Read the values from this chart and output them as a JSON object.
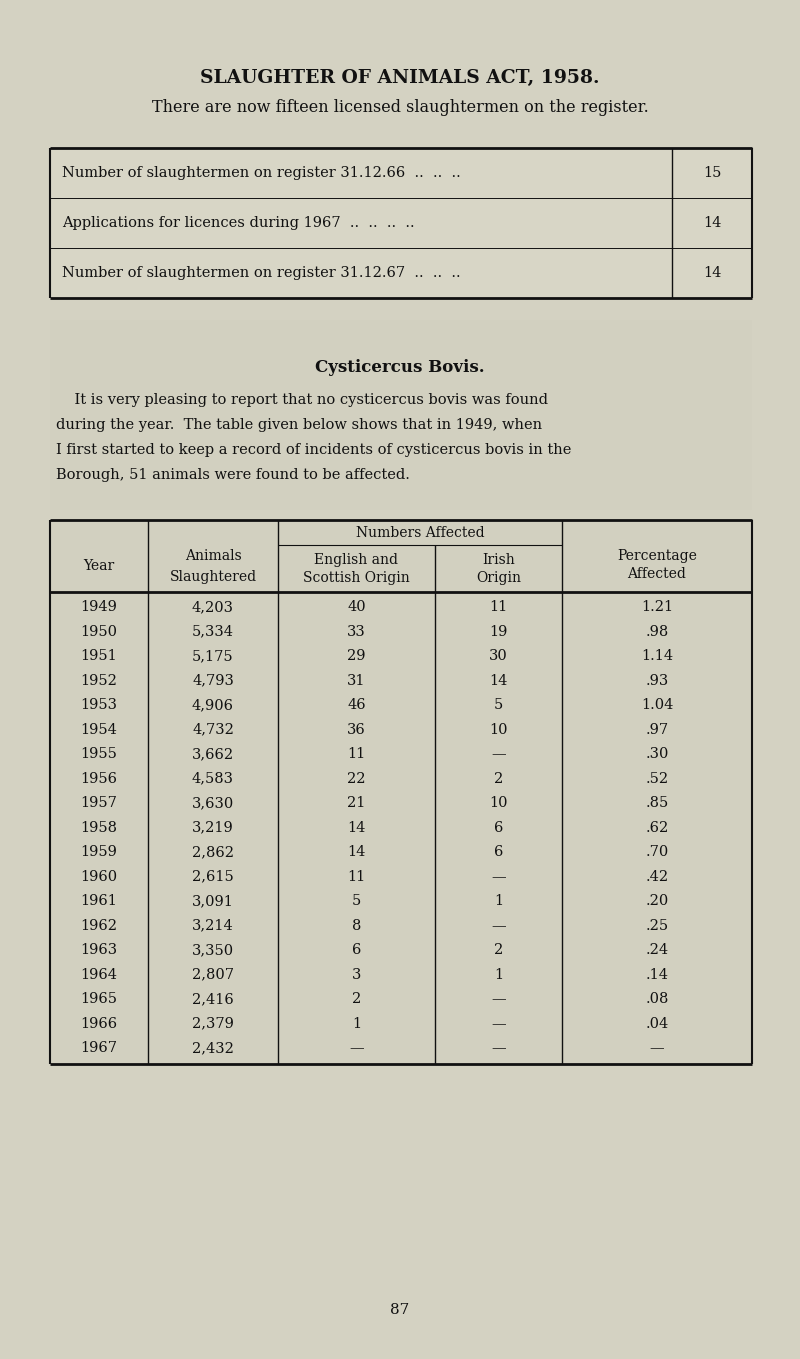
{
  "title": "SLAUGHTER OF ANIMALS ACT, 1958.",
  "subtitle": "There are now fifteen licensed slaughtermen on the register.",
  "bg_color": "#cccab8",
  "page_bg": "#d4d2c2",
  "box_bg": "#d0cebe",
  "text_color": "#1a1a1a",
  "table1_rows": [
    [
      "Number of slaughtermen on register 31.12.66  ..  ..  ..",
      "15"
    ],
    [
      "Applications for licences during 1967  ..  ..  ..  ..",
      "14"
    ],
    [
      "Number of slaughtermen on register 31.12.67  ..  ..  ..",
      "14"
    ]
  ],
  "section_title": "Cysticercus Bovis.",
  "para_lines": [
    "    It is very pleasing to report that no cysticercus bovis was found",
    "during the year.  The table given below shows that in 1949, when",
    "I first started to keep a record of incidents of cysticercus bovis in the",
    "Borough, 51 animals were found to be affected."
  ],
  "table2_rows": [
    [
      "1949",
      "4,203",
      "40",
      "11",
      "1.21"
    ],
    [
      "1950",
      "5,334",
      "33",
      "19",
      ".98"
    ],
    [
      "1951",
      "5,175",
      "29",
      "30",
      "1.14"
    ],
    [
      "1952",
      "4,793",
      "31",
      "14",
      ".93"
    ],
    [
      "1953",
      "4,906",
      "46",
      "5",
      "1.04"
    ],
    [
      "1954",
      "4,732",
      "36",
      "10",
      ".97"
    ],
    [
      "1955",
      "3,662",
      "11",
      "—",
      ".30"
    ],
    [
      "1956",
      "4,583",
      "22",
      "2",
      ".52"
    ],
    [
      "1957",
      "3,630",
      "21",
      "10",
      ".85"
    ],
    [
      "1958",
      "3,219",
      "14",
      "6",
      ".62"
    ],
    [
      "1959",
      "2,862",
      "14",
      "6",
      ".70"
    ],
    [
      "1960",
      "2,615",
      "11",
      "—",
      ".42"
    ],
    [
      "1961",
      "3,091",
      "5",
      "1",
      ".20"
    ],
    [
      "1962",
      "3,214",
      "8",
      "—",
      ".25"
    ],
    [
      "1963",
      "3,350",
      "6",
      "2",
      ".24"
    ],
    [
      "1964",
      "2,807",
      "3",
      "1",
      ".14"
    ],
    [
      "1965",
      "2,416",
      "2",
      "—",
      ".08"
    ],
    [
      "1966",
      "2,379",
      "1",
      "—",
      ".04"
    ],
    [
      "1967",
      "2,432",
      "—",
      "—",
      "—"
    ]
  ],
  "page_number": "87"
}
